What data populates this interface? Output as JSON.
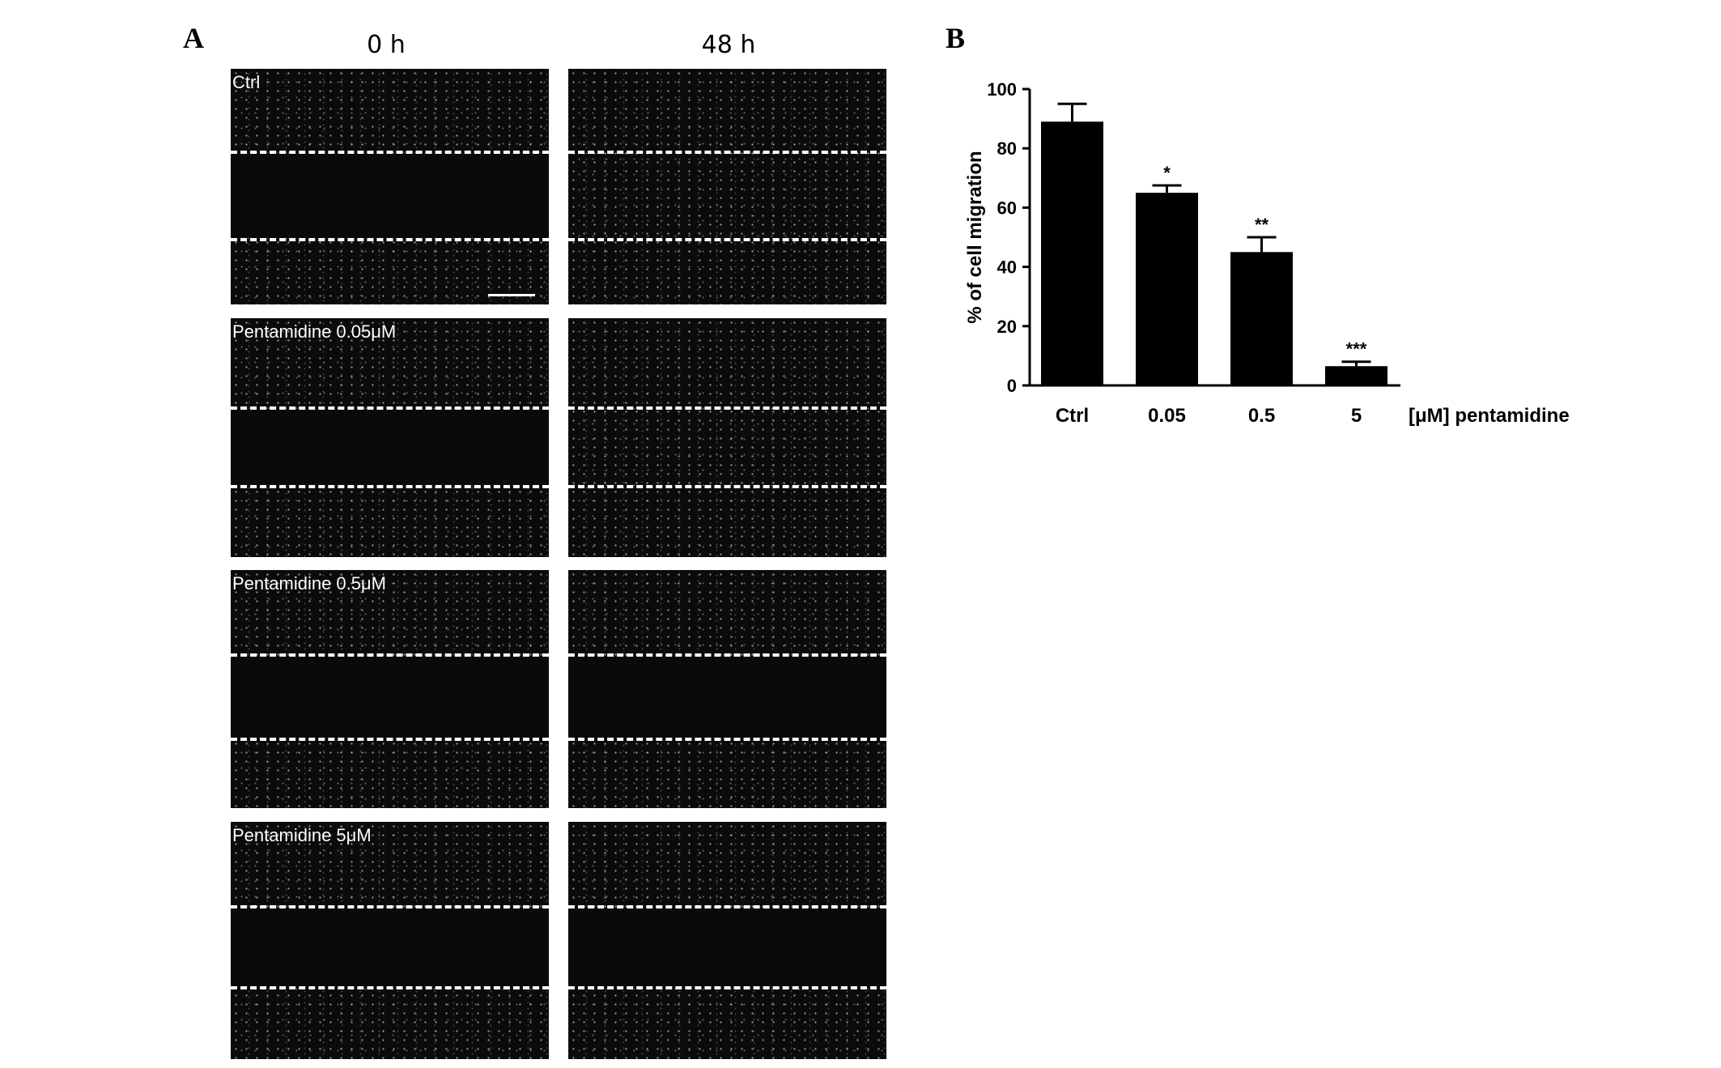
{
  "panel_a": {
    "letter": "A",
    "column_headers": [
      "0  h",
      "48  h"
    ],
    "rows": [
      {
        "label": "Ctrl"
      },
      {
        "label": "Pentamidine  0.05μM"
      },
      {
        "label": "Pentamidine  0.5μM"
      },
      {
        "label": "Pentamidine  5μM"
      }
    ]
  },
  "panel_b": {
    "letter": "B"
  },
  "chart_data": {
    "type": "bar",
    "categories": [
      "Ctrl",
      "0.05",
      "0.5",
      "5"
    ],
    "values": [
      89,
      65,
      45,
      6.5
    ],
    "errors": [
      6,
      2.5,
      5,
      1.5
    ],
    "significance": [
      "",
      "*",
      "**",
      "***"
    ],
    "title": "",
    "xlabel": "[μM] pentamidine",
    "ylabel": "% of cell migration",
    "ylim": [
      0,
      100
    ],
    "yticks": [
      0,
      20,
      40,
      60,
      80,
      100
    ],
    "grid": false,
    "bar_color": "#000000"
  }
}
